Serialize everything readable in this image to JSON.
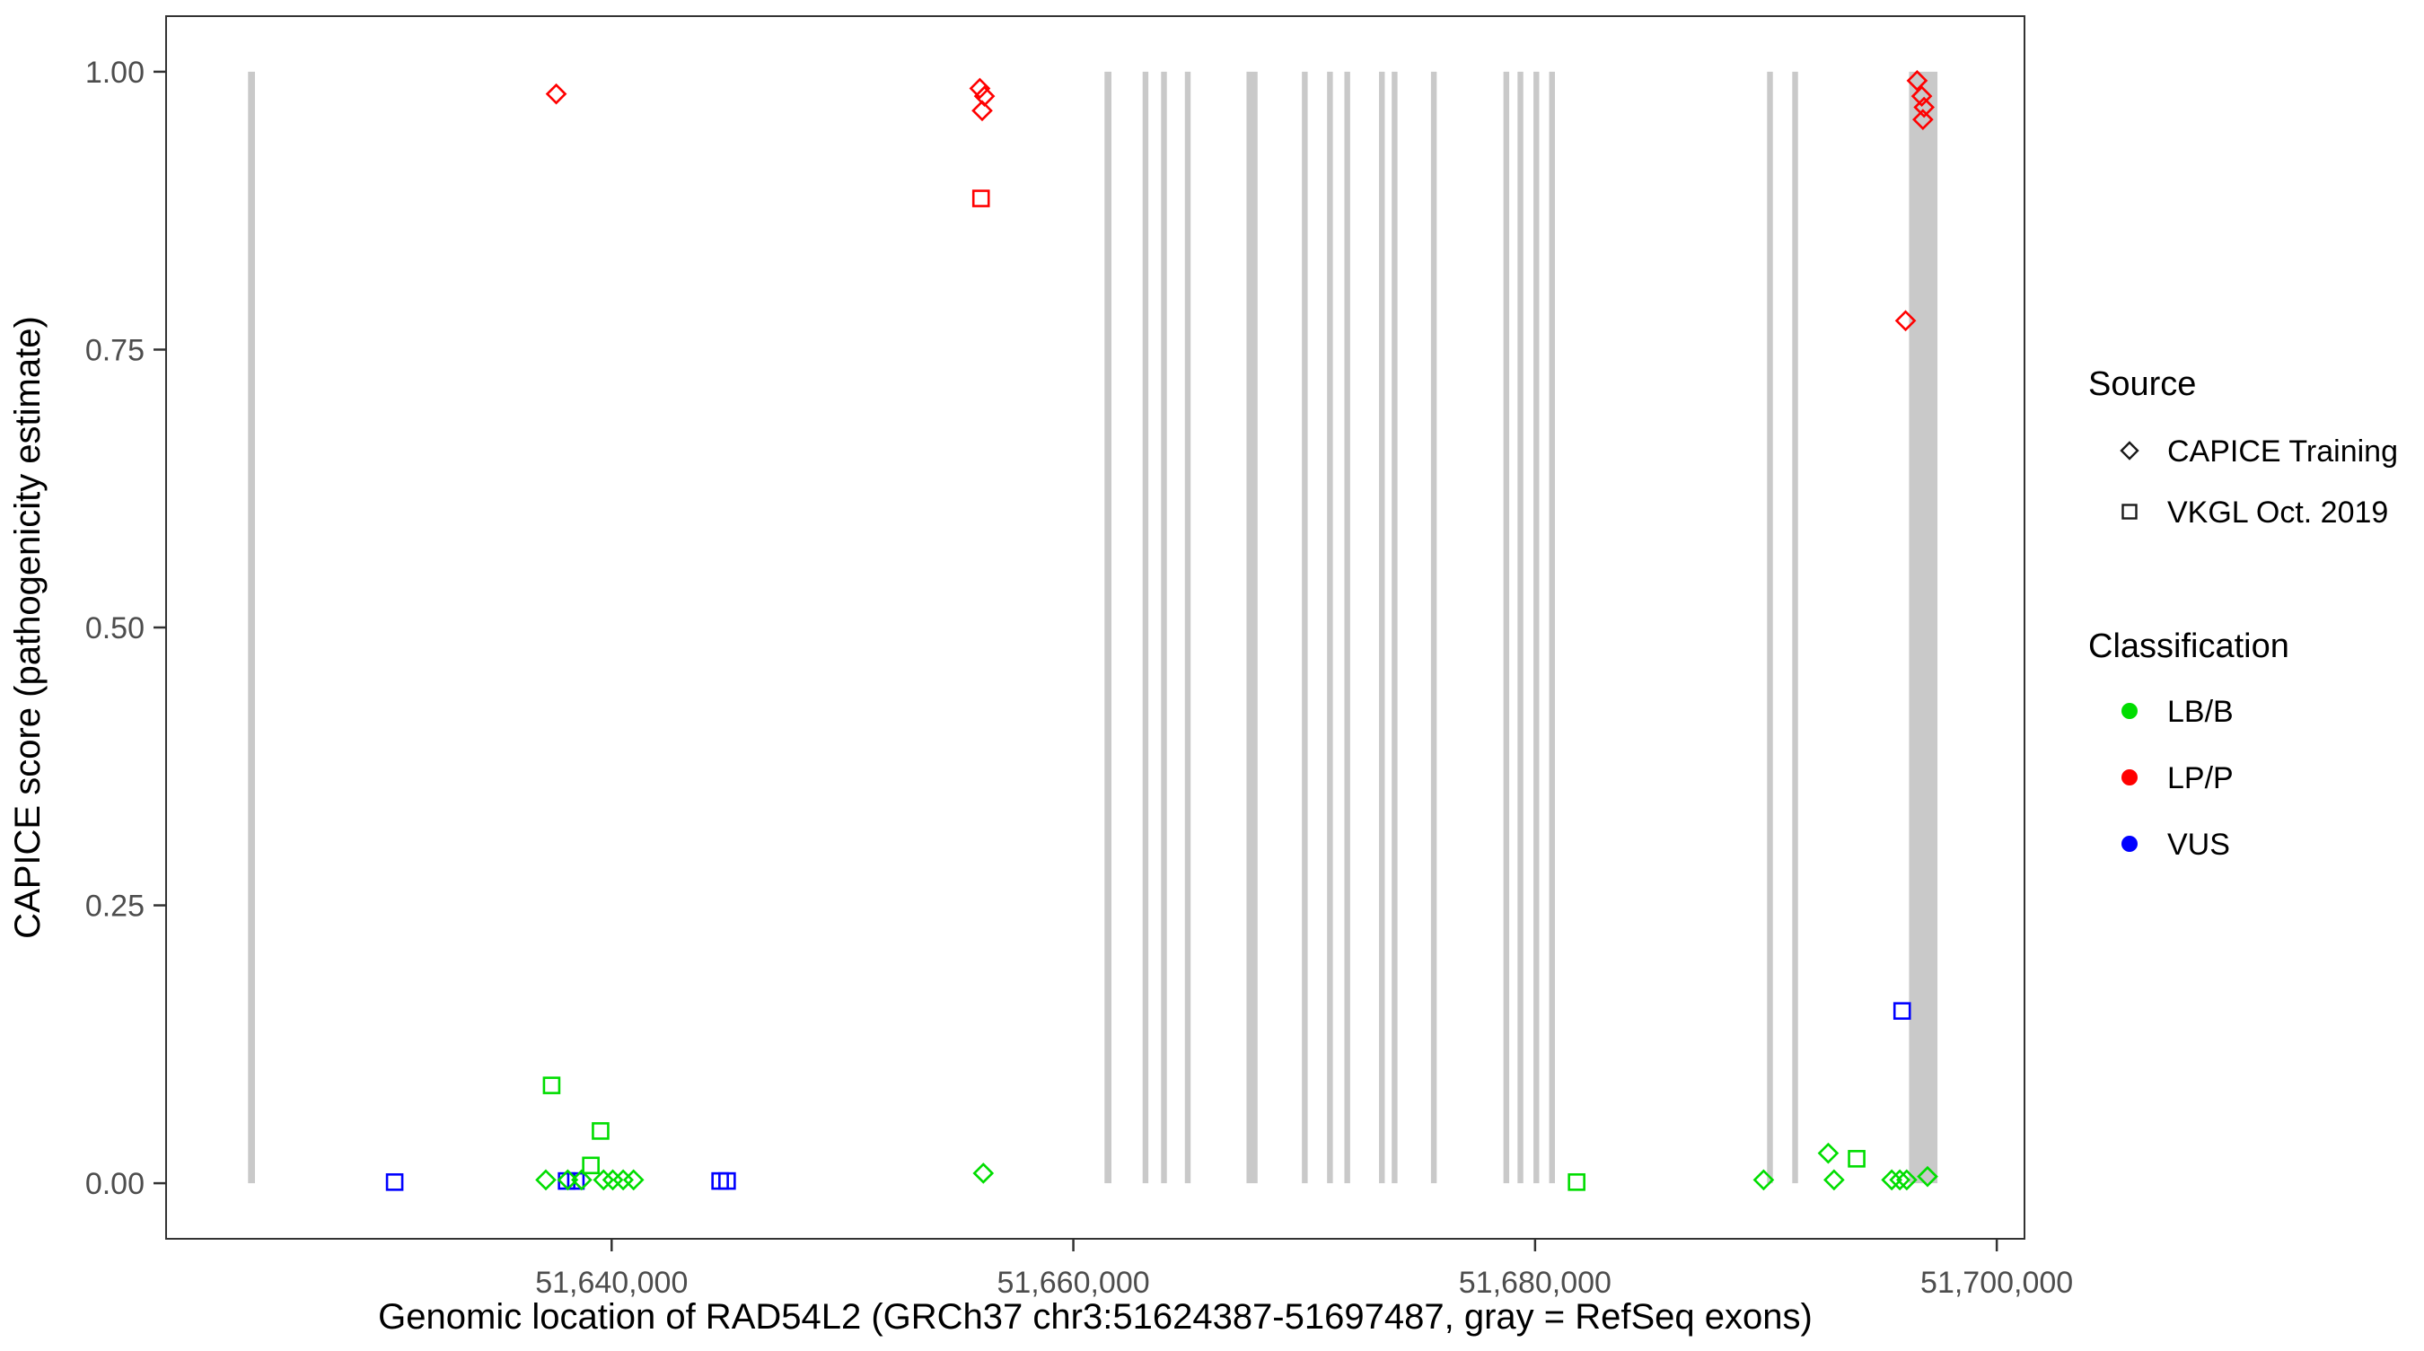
{
  "chart_data": {
    "type": "scatter",
    "title": "",
    "xlabel": "Genomic location of RAD54L2 (GRCh37 chr3:51624387-51697487, gray = RefSeq exons)",
    "ylabel": "CAPICE score (pathogenicity estimate)",
    "xlim": [
      51620700,
      51701200
    ],
    "ylim": [
      -0.05,
      1.05
    ],
    "grid": false,
    "x_ticks": [
      {
        "value": 51640000,
        "label": "51,640,000"
      },
      {
        "value": 51660000,
        "label": "51,660,000"
      },
      {
        "value": 51680000,
        "label": "51,680,000"
      },
      {
        "value": 51700000,
        "label": "51,700,000"
      }
    ],
    "y_ticks": [
      {
        "value": 0.0,
        "label": "0.00"
      },
      {
        "value": 0.25,
        "label": "0.25"
      },
      {
        "value": 0.5,
        "label": "0.50"
      },
      {
        "value": 0.75,
        "label": "0.75"
      },
      {
        "value": 1.0,
        "label": "1.00"
      }
    ],
    "exon_color": "#c9c9c9",
    "exons": [
      [
        51624250,
        51624550
      ],
      [
        51661350,
        51661650
      ],
      [
        51663000,
        51663250
      ],
      [
        51663800,
        51664050
      ],
      [
        51664830,
        51665080
      ],
      [
        51667500,
        51667980
      ],
      [
        51669900,
        51670150
      ],
      [
        51670990,
        51671240
      ],
      [
        51671740,
        51671990
      ],
      [
        51673240,
        51673490
      ],
      [
        51673790,
        51674040
      ],
      [
        51675490,
        51675740
      ],
      [
        51678630,
        51678880
      ],
      [
        51679240,
        51679490
      ],
      [
        51679930,
        51680180
      ],
      [
        51680610,
        51680860
      ],
      [
        51690050,
        51690300
      ],
      [
        51691140,
        51691390
      ],
      [
        51696200,
        51697430
      ]
    ],
    "classification_colors": {
      "LB/B": "#00dd00",
      "LP/P": "#ff0000",
      "VUS": "#0000ff"
    },
    "points": [
      {
        "x": 51637600,
        "y": 0.98,
        "shape": "diamond",
        "classification": "LP/P",
        "source": "CAPICE Training"
      },
      {
        "x": 51655950,
        "y": 0.985,
        "shape": "diamond",
        "classification": "LP/P",
        "source": "CAPICE Training"
      },
      {
        "x": 51656150,
        "y": 0.978,
        "shape": "diamond",
        "classification": "LP/P",
        "source": "CAPICE Training"
      },
      {
        "x": 51656050,
        "y": 0.965,
        "shape": "diamond",
        "classification": "LP/P",
        "source": "CAPICE Training"
      },
      {
        "x": 51656000,
        "y": 0.886,
        "shape": "square",
        "classification": "LP/P",
        "source": "VKGL Oct. 2019"
      },
      {
        "x": 51696550,
        "y": 0.992,
        "shape": "diamond",
        "classification": "LP/P",
        "source": "CAPICE Training"
      },
      {
        "x": 51696750,
        "y": 0.978,
        "shape": "diamond",
        "classification": "LP/P",
        "source": "CAPICE Training"
      },
      {
        "x": 51696850,
        "y": 0.968,
        "shape": "diamond",
        "classification": "LP/P",
        "source": "CAPICE Training"
      },
      {
        "x": 51696800,
        "y": 0.957,
        "shape": "diamond",
        "classification": "LP/P",
        "source": "CAPICE Training"
      },
      {
        "x": 51696050,
        "y": 0.776,
        "shape": "diamond",
        "classification": "LP/P",
        "source": "CAPICE Training"
      },
      {
        "x": 51630600,
        "y": 0.001,
        "shape": "square",
        "classification": "VUS",
        "source": "VKGL Oct. 2019"
      },
      {
        "x": 51638050,
        "y": 0.002,
        "shape": "square",
        "classification": "VUS",
        "source": "VKGL Oct. 2019"
      },
      {
        "x": 51638450,
        "y": 0.002,
        "shape": "square",
        "classification": "VUS",
        "source": "VKGL Oct. 2019"
      },
      {
        "x": 51644700,
        "y": 0.002,
        "shape": "square",
        "classification": "VUS",
        "source": "VKGL Oct. 2019"
      },
      {
        "x": 51645000,
        "y": 0.002,
        "shape": "square",
        "classification": "VUS",
        "source": "VKGL Oct. 2019"
      },
      {
        "x": 51695900,
        "y": 0.155,
        "shape": "square",
        "classification": "VUS",
        "source": "VKGL Oct. 2019"
      },
      {
        "x": 51637400,
        "y": 0.088,
        "shape": "square",
        "classification": "LB/B",
        "source": "VKGL Oct. 2019"
      },
      {
        "x": 51639520,
        "y": 0.047,
        "shape": "square",
        "classification": "LB/B",
        "source": "VKGL Oct. 2019"
      },
      {
        "x": 51639100,
        "y": 0.016,
        "shape": "square",
        "classification": "LB/B",
        "source": "VKGL Oct. 2019"
      },
      {
        "x": 51681800,
        "y": 0.001,
        "shape": "square",
        "classification": "LB/B",
        "source": "VKGL Oct. 2019"
      },
      {
        "x": 51693930,
        "y": 0.022,
        "shape": "square",
        "classification": "LB/B",
        "source": "VKGL Oct. 2019"
      },
      {
        "x": 51637150,
        "y": 0.003,
        "shape": "diamond",
        "classification": "LB/B",
        "source": "CAPICE Training"
      },
      {
        "x": 51638100,
        "y": 0.003,
        "shape": "diamond",
        "classification": "LB/B",
        "source": "CAPICE Training"
      },
      {
        "x": 51638700,
        "y": 0.003,
        "shape": "diamond",
        "classification": "LB/B",
        "source": "CAPICE Training"
      },
      {
        "x": 51639650,
        "y": 0.003,
        "shape": "diamond",
        "classification": "LB/B",
        "source": "CAPICE Training"
      },
      {
        "x": 51640050,
        "y": 0.003,
        "shape": "diamond",
        "classification": "LB/B",
        "source": "CAPICE Training"
      },
      {
        "x": 51640500,
        "y": 0.003,
        "shape": "diamond",
        "classification": "LB/B",
        "source": "CAPICE Training"
      },
      {
        "x": 51640950,
        "y": 0.003,
        "shape": "diamond",
        "classification": "LB/B",
        "source": "CAPICE Training"
      },
      {
        "x": 51656100,
        "y": 0.009,
        "shape": "diamond",
        "classification": "LB/B",
        "source": "CAPICE Training"
      },
      {
        "x": 51689900,
        "y": 0.003,
        "shape": "diamond",
        "classification": "LB/B",
        "source": "CAPICE Training"
      },
      {
        "x": 51692700,
        "y": 0.027,
        "shape": "diamond",
        "classification": "LB/B",
        "source": "CAPICE Training"
      },
      {
        "x": 51692950,
        "y": 0.003,
        "shape": "diamond",
        "classification": "LB/B",
        "source": "CAPICE Training"
      },
      {
        "x": 51695450,
        "y": 0.003,
        "shape": "diamond",
        "classification": "LB/B",
        "source": "CAPICE Training"
      },
      {
        "x": 51695800,
        "y": 0.003,
        "shape": "diamond",
        "classification": "LB/B",
        "source": "CAPICE Training"
      },
      {
        "x": 51696100,
        "y": 0.003,
        "shape": "diamond",
        "classification": "LB/B",
        "source": "CAPICE Training"
      },
      {
        "x": 51697000,
        "y": 0.006,
        "shape": "diamond",
        "classification": "LB/B",
        "source": "CAPICE Training"
      }
    ],
    "legend": {
      "source": {
        "title": "Source",
        "items": [
          {
            "label": "CAPICE Training",
            "shape": "diamond"
          },
          {
            "label": "VKGL Oct. 2019",
            "shape": "square"
          }
        ]
      },
      "classification": {
        "title": "Classification",
        "items": [
          {
            "label": "LB/B",
            "color": "#00dd00"
          },
          {
            "label": "LP/P",
            "color": "#ff0000"
          },
          {
            "label": "VUS",
            "color": "#0000ff"
          }
        ]
      }
    }
  }
}
